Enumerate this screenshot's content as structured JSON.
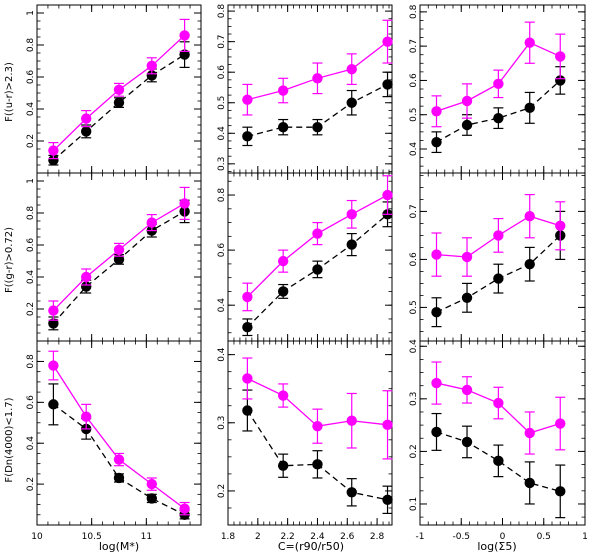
{
  "colors": {
    "series_magenta": "#ff00ff",
    "series_black": "#000000",
    "axis": "#000000"
  },
  "chart_data": [
    {
      "type": "line",
      "panel": "top-left",
      "row": 0,
      "col": 0,
      "xlabel": "",
      "ylabel": "F((u-r)>2.3)",
      "xlim": [
        10.0,
        11.5
      ],
      "ylim": [
        0.0,
        1.05
      ],
      "xticks": [
        10.0,
        10.5,
        11.0
      ],
      "xtick_labels": [
        "",
        "",
        ""
      ],
      "yticks": [
        0.2,
        0.4,
        0.6,
        0.8,
        1.0
      ],
      "ytick_labels": [
        "0.2",
        "0.4",
        "0.6",
        "0.8",
        "1"
      ],
      "series": [
        {
          "name": "magenta",
          "color": "#ff00ff",
          "style": "solid",
          "x": [
            10.15,
            10.45,
            10.75,
            11.05,
            11.35
          ],
          "y": [
            0.14,
            0.34,
            0.52,
            0.67,
            0.86
          ],
          "err": [
            0.05,
            0.05,
            0.04,
            0.05,
            0.1
          ]
        },
        {
          "name": "black",
          "color": "#000000",
          "style": "dashed",
          "x": [
            10.15,
            10.45,
            10.75,
            11.05,
            11.35
          ],
          "y": [
            0.08,
            0.26,
            0.44,
            0.61,
            0.74
          ],
          "err": [
            0.03,
            0.04,
            0.03,
            0.04,
            0.08
          ]
        }
      ]
    },
    {
      "type": "line",
      "panel": "top-middle",
      "row": 0,
      "col": 1,
      "xlabel": "",
      "ylabel": "",
      "xlim": [
        1.8,
        2.9
      ],
      "ylim": [
        0.27,
        0.82
      ],
      "xticks": [
        1.8,
        2.0,
        2.2,
        2.4,
        2.6,
        2.8
      ],
      "xtick_labels": [
        "",
        "",
        "",
        "",
        "",
        ""
      ],
      "yticks": [
        0.3,
        0.4,
        0.5,
        0.6,
        0.7,
        0.8
      ],
      "ytick_labels": [
        "0.3",
        "0.4",
        "0.5",
        "0.6",
        "0.7",
        "0.8"
      ],
      "series": [
        {
          "name": "magenta",
          "color": "#ff00ff",
          "style": "solid",
          "x": [
            1.93,
            2.17,
            2.4,
            2.63,
            2.87
          ],
          "y": [
            0.51,
            0.54,
            0.58,
            0.61,
            0.7
          ],
          "err": [
            0.05,
            0.04,
            0.05,
            0.05,
            0.07
          ]
        },
        {
          "name": "black",
          "color": "#000000",
          "style": "dashed",
          "x": [
            1.93,
            2.17,
            2.4,
            2.63,
            2.87
          ],
          "y": [
            0.39,
            0.42,
            0.42,
            0.5,
            0.56
          ],
          "err": [
            0.03,
            0.025,
            0.025,
            0.04,
            0.04
          ]
        }
      ]
    },
    {
      "type": "line",
      "panel": "top-right",
      "row": 0,
      "col": 2,
      "xlabel": "",
      "ylabel": "",
      "xlim": [
        -1.0,
        1.0
      ],
      "ylim": [
        0.33,
        0.82
      ],
      "xticks": [
        -1.0,
        -0.5,
        0.0,
        0.5,
        1.0
      ],
      "xtick_labels": [
        "",
        "",
        "",
        "",
        ""
      ],
      "yticks": [
        0.4,
        0.5,
        0.6,
        0.7,
        0.8
      ],
      "ytick_labels": [
        "0.4",
        "0.5",
        "0.6",
        "0.7",
        "0.8"
      ],
      "series": [
        {
          "name": "magenta",
          "color": "#ff00ff",
          "style": "solid",
          "x": [
            -0.8,
            -0.43,
            -0.05,
            0.33,
            0.7
          ],
          "y": [
            0.51,
            0.54,
            0.59,
            0.71,
            0.67
          ],
          "err": [
            0.045,
            0.05,
            0.04,
            0.06,
            0.065
          ]
        },
        {
          "name": "black",
          "color": "#000000",
          "style": "dashed",
          "x": [
            -0.8,
            -0.43,
            -0.05,
            0.33,
            0.7
          ],
          "y": [
            0.42,
            0.47,
            0.49,
            0.52,
            0.6
          ],
          "err": [
            0.03,
            0.03,
            0.03,
            0.045,
            0.04
          ]
        }
      ]
    },
    {
      "type": "line",
      "panel": "middle-left",
      "row": 1,
      "col": 0,
      "xlabel": "",
      "ylabel": "F((g-r)>0.72)",
      "xlim": [
        10.0,
        11.5
      ],
      "ylim": [
        0.0,
        1.05
      ],
      "xticks": [
        10.0,
        10.5,
        11.0
      ],
      "xtick_labels": [
        "",
        "",
        ""
      ],
      "yticks": [
        0.2,
        0.4,
        0.6,
        0.8,
        1.0
      ],
      "ytick_labels": [
        "0.2",
        "0.4",
        "0.6",
        "0.8",
        "1"
      ],
      "series": [
        {
          "name": "magenta",
          "color": "#ff00ff",
          "style": "solid",
          "x": [
            10.15,
            10.45,
            10.75,
            11.05,
            11.35
          ],
          "y": [
            0.19,
            0.4,
            0.57,
            0.74,
            0.86
          ],
          "err": [
            0.06,
            0.05,
            0.04,
            0.05,
            0.1
          ]
        },
        {
          "name": "black",
          "color": "#000000",
          "style": "dashed",
          "x": [
            10.15,
            10.45,
            10.75,
            11.05,
            11.35
          ],
          "y": [
            0.11,
            0.34,
            0.51,
            0.69,
            0.81
          ],
          "err": [
            0.04,
            0.04,
            0.03,
            0.04,
            0.07
          ]
        }
      ]
    },
    {
      "type": "line",
      "panel": "center",
      "row": 1,
      "col": 1,
      "xlabel": "",
      "ylabel": "",
      "xlim": [
        1.8,
        2.9
      ],
      "ylim": [
        0.27,
        0.88
      ],
      "xticks": [
        1.8,
        2.0,
        2.2,
        2.4,
        2.6,
        2.8
      ],
      "xtick_labels": [
        "",
        "",
        "",
        "",
        "",
        ""
      ],
      "yticks": [
        0.4,
        0.6,
        0.8
      ],
      "ytick_labels": [
        "0.4",
        "0.6",
        "0.8"
      ],
      "series": [
        {
          "name": "magenta",
          "color": "#ff00ff",
          "style": "solid",
          "x": [
            1.93,
            2.17,
            2.4,
            2.63,
            2.87
          ],
          "y": [
            0.43,
            0.56,
            0.66,
            0.73,
            0.8
          ],
          "err": [
            0.05,
            0.04,
            0.04,
            0.05,
            0.07
          ]
        },
        {
          "name": "black",
          "color": "#000000",
          "style": "dashed",
          "x": [
            1.93,
            2.17,
            2.4,
            2.63,
            2.87
          ],
          "y": [
            0.32,
            0.45,
            0.53,
            0.62,
            0.73
          ],
          "err": [
            0.03,
            0.025,
            0.03,
            0.04,
            0.045
          ]
        }
      ]
    },
    {
      "type": "line",
      "panel": "middle-right",
      "row": 1,
      "col": 2,
      "xlabel": "",
      "ylabel": "",
      "xlim": [
        -1.0,
        1.0
      ],
      "ylim": [
        0.43,
        0.78
      ],
      "xticks": [
        -1.0,
        -0.5,
        0.0,
        0.5,
        1.0
      ],
      "xtick_labels": [
        "",
        "",
        "",
        "",
        ""
      ],
      "yticks": [
        0.5,
        0.6,
        0.7
      ],
      "ytick_labels": [
        "0.5",
        "0.6",
        "0.7"
      ],
      "series": [
        {
          "name": "magenta",
          "color": "#ff00ff",
          "style": "solid",
          "x": [
            -0.8,
            -0.43,
            -0.05,
            0.33,
            0.7
          ],
          "y": [
            0.61,
            0.605,
            0.65,
            0.69,
            0.67
          ],
          "err": [
            0.045,
            0.04,
            0.035,
            0.045,
            0.05
          ]
        },
        {
          "name": "black",
          "color": "#000000",
          "style": "dashed",
          "x": [
            -0.8,
            -0.43,
            -0.05,
            0.33,
            0.7
          ],
          "y": [
            0.49,
            0.52,
            0.56,
            0.59,
            0.65
          ],
          "err": [
            0.03,
            0.03,
            0.03,
            0.035,
            0.05
          ]
        }
      ]
    },
    {
      "type": "line",
      "panel": "bottom-left",
      "row": 2,
      "col": 0,
      "xlabel": "log(M*)",
      "ylabel": "F(Dn(4000)<1.7)",
      "xlim": [
        10.0,
        11.5
      ],
      "ylim": [
        0.0,
        0.9
      ],
      "xticks": [
        10.0,
        10.5,
        11.0
      ],
      "xtick_labels": [
        "10",
        "10.5",
        "11"
      ],
      "yticks": [
        0.2,
        0.4,
        0.6,
        0.8
      ],
      "ytick_labels": [
        "0.2",
        "0.4",
        "0.6",
        "0.8"
      ],
      "series": [
        {
          "name": "magenta",
          "color": "#ff00ff",
          "style": "solid",
          "x": [
            10.15,
            10.45,
            10.75,
            11.05,
            11.35
          ],
          "y": [
            0.78,
            0.53,
            0.32,
            0.2,
            0.08
          ],
          "err": [
            0.07,
            0.06,
            0.03,
            0.03,
            0.03
          ]
        },
        {
          "name": "black",
          "color": "#000000",
          "style": "dashed",
          "x": [
            10.15,
            10.45,
            10.75,
            11.05,
            11.35
          ],
          "y": [
            0.59,
            0.47,
            0.23,
            0.13,
            0.05
          ],
          "err": [
            0.1,
            0.05,
            0.02,
            0.02,
            0.02
          ]
        }
      ]
    },
    {
      "type": "line",
      "panel": "bottom-middle",
      "row": 2,
      "col": 1,
      "xlabel": "C=(r90/r50)",
      "ylabel": "",
      "xlim": [
        1.8,
        2.9
      ],
      "ylim": [
        0.15,
        0.42
      ],
      "xticks": [
        1.8,
        2.0,
        2.2,
        2.4,
        2.6,
        2.8
      ],
      "xtick_labels": [
        "1.8",
        "2",
        "2.2",
        "2.4",
        "2.6",
        "2.8"
      ],
      "yticks": [
        0.2,
        0.3,
        0.4
      ],
      "ytick_labels": [
        "0.2",
        "0.3",
        "0.4"
      ],
      "series": [
        {
          "name": "magenta",
          "color": "#ff00ff",
          "style": "solid",
          "x": [
            1.93,
            2.17,
            2.4,
            2.63,
            2.87
          ],
          "y": [
            0.365,
            0.34,
            0.295,
            0.303,
            0.297
          ],
          "err": [
            0.03,
            0.017,
            0.025,
            0.04,
            0.05
          ]
        },
        {
          "name": "black",
          "color": "#000000",
          "style": "dashed",
          "x": [
            1.93,
            2.17,
            2.4,
            2.63,
            2.87
          ],
          "y": [
            0.318,
            0.237,
            0.239,
            0.198,
            0.187
          ],
          "err": [
            0.03,
            0.017,
            0.02,
            0.02,
            0.02
          ]
        }
      ]
    },
    {
      "type": "line",
      "panel": "bottom-right",
      "row": 2,
      "col": 2,
      "xlabel": "log(Σ5)",
      "ylabel": "",
      "xlim": [
        -1.0,
        1.0
      ],
      "ylim": [
        0.06,
        0.41
      ],
      "xticks": [
        -1.0,
        -0.5,
        0.0,
        0.5,
        1.0
      ],
      "xtick_labels": [
        "-1",
        "-0.5",
        "0",
        "0.5",
        "1"
      ],
      "yticks": [
        0.1,
        0.2,
        0.3,
        0.4
      ],
      "ytick_labels": [
        "0.1",
        "0.2",
        "0.3",
        "0.4"
      ],
      "series": [
        {
          "name": "magenta",
          "color": "#ff00ff",
          "style": "solid",
          "x": [
            -0.8,
            -0.43,
            -0.05,
            0.33,
            0.7
          ],
          "y": [
            0.33,
            0.317,
            0.292,
            0.235,
            0.253
          ],
          "err": [
            0.04,
            0.025,
            0.03,
            0.04,
            0.05
          ]
        },
        {
          "name": "black",
          "color": "#000000",
          "style": "dashed",
          "x": [
            -0.8,
            -0.43,
            -0.05,
            0.33,
            0.7
          ],
          "y": [
            0.237,
            0.218,
            0.182,
            0.14,
            0.124
          ],
          "err": [
            0.035,
            0.03,
            0.03,
            0.04,
            0.05
          ]
        }
      ]
    }
  ]
}
